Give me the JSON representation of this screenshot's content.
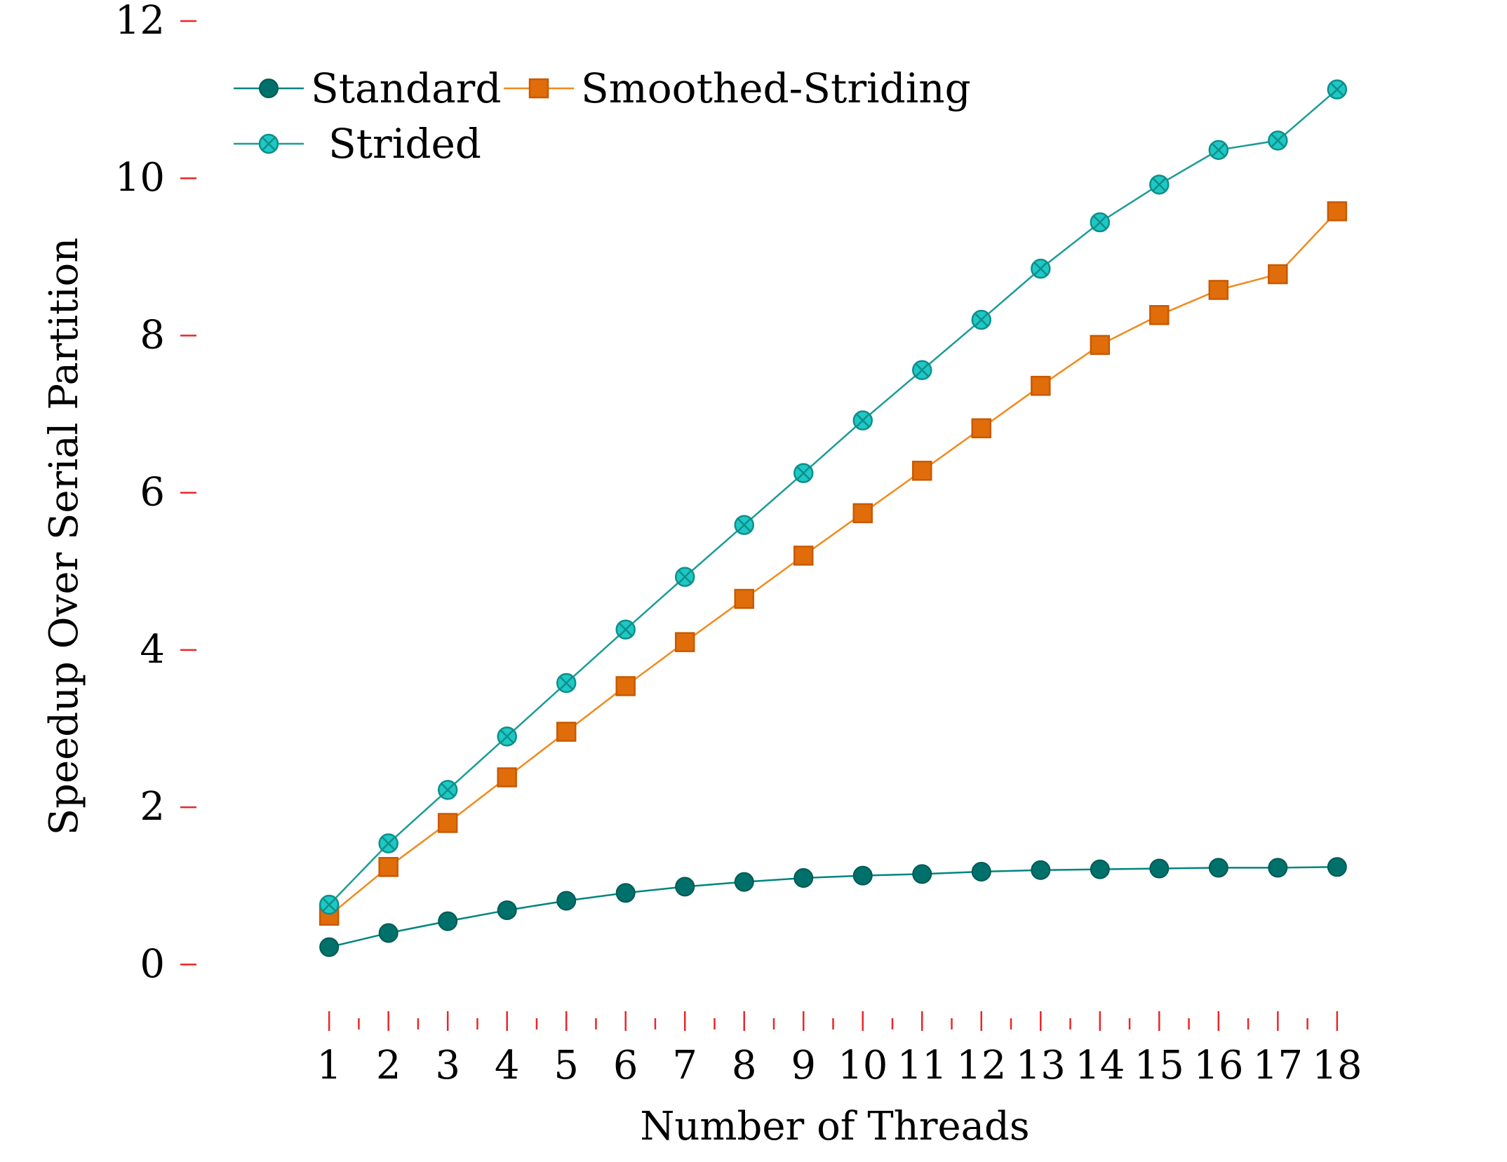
{
  "chart_data": {
    "type": "line",
    "title": "",
    "xlabel": "Number of Threads",
    "ylabel": "Speedup Over Serial Partition",
    "x": [
      1,
      2,
      3,
      4,
      5,
      6,
      7,
      8,
      9,
      10,
      11,
      12,
      13,
      14,
      15,
      16,
      17,
      18
    ],
    "xticks": [
      "1",
      "2",
      "3",
      "4",
      "5",
      "6",
      "7",
      "8",
      "9",
      "10",
      "11",
      "12",
      "13",
      "14",
      "15",
      "16",
      "17",
      "18"
    ],
    "yticks": [
      "0",
      "2",
      "4",
      "6",
      "8",
      "10",
      "12"
    ],
    "ylim": [
      -0.8,
      12
    ],
    "xlim": [
      0.3,
      18.7
    ],
    "grid": false,
    "legend_position": "top-left",
    "tick_color": "#e8262a",
    "series": [
      {
        "name": "Standard",
        "marker": "circle",
        "line_color": "#00857f",
        "marker_fill": "#00706a",
        "marker_stroke": "#005a55",
        "values": [
          0.22,
          0.4,
          0.55,
          0.69,
          0.81,
          0.91,
          0.99,
          1.05,
          1.1,
          1.13,
          1.15,
          1.18,
          1.2,
          1.21,
          1.22,
          1.23,
          1.23,
          1.24
        ]
      },
      {
        "name": "Smoothed-Striding",
        "marker": "square",
        "line_color": "#f08a1c",
        "marker_fill": "#e06d0a",
        "marker_stroke": "#c85a00",
        "values": [
          0.62,
          1.24,
          1.8,
          2.38,
          2.96,
          3.54,
          4.1,
          4.65,
          5.2,
          5.74,
          6.28,
          6.82,
          7.36,
          7.88,
          8.26,
          8.58,
          8.78,
          9.58
        ]
      },
      {
        "name": "Strided",
        "marker": "circle-x",
        "line_color": "#1a9c97",
        "marker_fill": "#1ec8c4",
        "marker_stroke": "#0e8f8b",
        "values": [
          0.76,
          1.54,
          2.22,
          2.9,
          3.58,
          4.26,
          4.93,
          5.59,
          6.25,
          6.92,
          7.56,
          8.2,
          8.85,
          9.44,
          9.92,
          10.36,
          10.48,
          11.13
        ]
      }
    ]
  }
}
